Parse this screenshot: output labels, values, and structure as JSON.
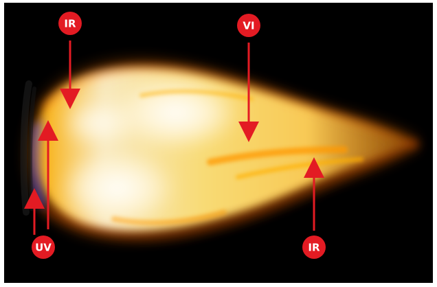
{
  "labels": {
    "ir_top": "IR",
    "vi_top": "VI",
    "uv_bottom": "UV",
    "ir_bottom": "IR"
  },
  "colors": {
    "background": "#000000",
    "accent": "#e31b23",
    "badge_text": "#ffffff"
  }
}
